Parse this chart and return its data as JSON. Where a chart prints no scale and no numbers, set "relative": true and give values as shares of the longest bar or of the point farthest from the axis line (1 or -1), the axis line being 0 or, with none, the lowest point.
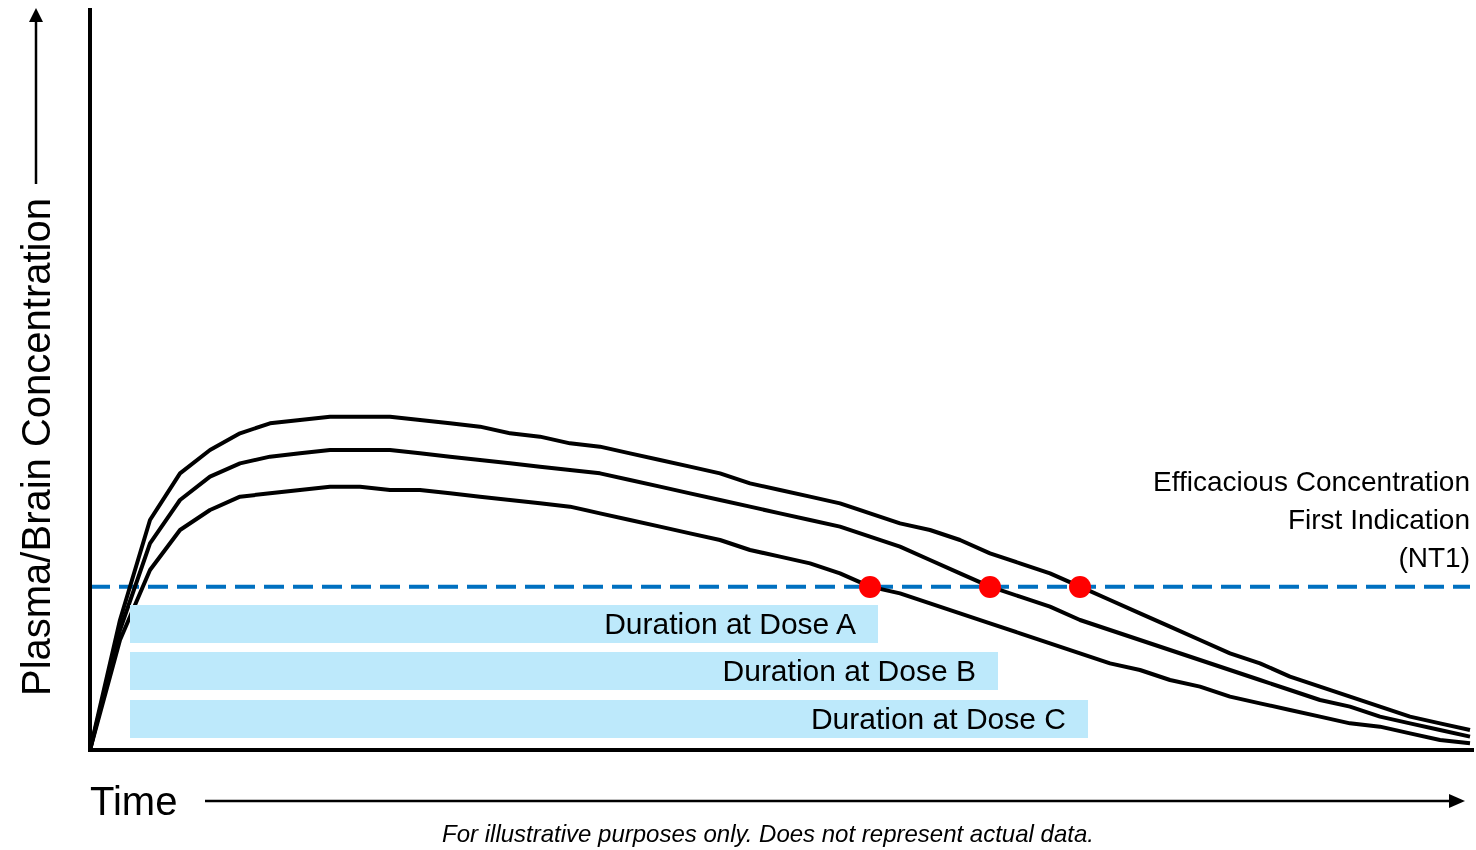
{
  "chart_data": {
    "type": "line",
    "relative": true,
    "xlabel": "Time",
    "ylabel": "Plasma/Brain Concentration",
    "categories": [
      null,
      null,
      null,
      null,
      null,
      null,
      null,
      null,
      null,
      null,
      null,
      null,
      null,
      null,
      null,
      null,
      null,
      null,
      null,
      null,
      null,
      null,
      null,
      null,
      null,
      null,
      null,
      null,
      null,
      null,
      null,
      null,
      null,
      null,
      null,
      null,
      null,
      null,
      null,
      null,
      null,
      null,
      null,
      null,
      null,
      null,
      null
    ],
    "series": [
      {
        "color": "#000000",
        "values": [
          0,
          0.39,
          0.69,
          0.83,
          0.9,
          0.95,
          0.98,
          0.99,
          1.0,
          1.0,
          1.0,
          0.99,
          0.98,
          0.97,
          0.95,
          0.94,
          0.92,
          0.91,
          0.89,
          0.87,
          0.85,
          0.83,
          0.8,
          0.78,
          0.76,
          0.74,
          0.71,
          0.68,
          0.66,
          0.63,
          0.59,
          0.56,
          0.53,
          0.49,
          0.45,
          0.41,
          0.37,
          0.33,
          0.29,
          0.26,
          0.22,
          0.19,
          0.16,
          0.13,
          0.1,
          0.08,
          0.06
        ]
      },
      {
        "color": "#000000",
        "values": [
          0,
          0.36,
          0.62,
          0.75,
          0.82,
          0.86,
          0.88,
          0.89,
          0.9,
          0.9,
          0.9,
          0.89,
          0.88,
          0.87,
          0.86,
          0.85,
          0.84,
          0.83,
          0.81,
          0.79,
          0.77,
          0.75,
          0.73,
          0.71,
          0.69,
          0.67,
          0.64,
          0.61,
          0.57,
          0.53,
          0.49,
          0.46,
          0.43,
          0.39,
          0.36,
          0.33,
          0.3,
          0.27,
          0.24,
          0.21,
          0.18,
          0.15,
          0.13,
          0.1,
          0.08,
          0.06,
          0.04
        ]
      },
      {
        "color": "#000000",
        "values": [
          0,
          0.33,
          0.54,
          0.66,
          0.72,
          0.76,
          0.77,
          0.78,
          0.79,
          0.79,
          0.78,
          0.78,
          0.77,
          0.76,
          0.75,
          0.74,
          0.73,
          0.71,
          0.69,
          0.67,
          0.65,
          0.63,
          0.6,
          0.58,
          0.56,
          0.53,
          0.49,
          0.47,
          0.44,
          0.41,
          0.38,
          0.35,
          0.32,
          0.29,
          0.26,
          0.24,
          0.21,
          0.19,
          0.16,
          0.14,
          0.12,
          0.1,
          0.08,
          0.07,
          0.05,
          0.03,
          0.02
        ]
      }
    ],
    "ref_lines": [
      {
        "axis": "y",
        "value": 0.49,
        "label": "Efficacious Concentration\nFirst Indication\n(NT1)",
        "color": "#0070c0",
        "line_style": "dashed"
      }
    ],
    "annotations": [
      "Duration at Dose A",
      "Duration at Dose B",
      "Duration at Dose C",
      "For illustrative purposes only. Does not represent actual data."
    ],
    "legend": false
  }
}
